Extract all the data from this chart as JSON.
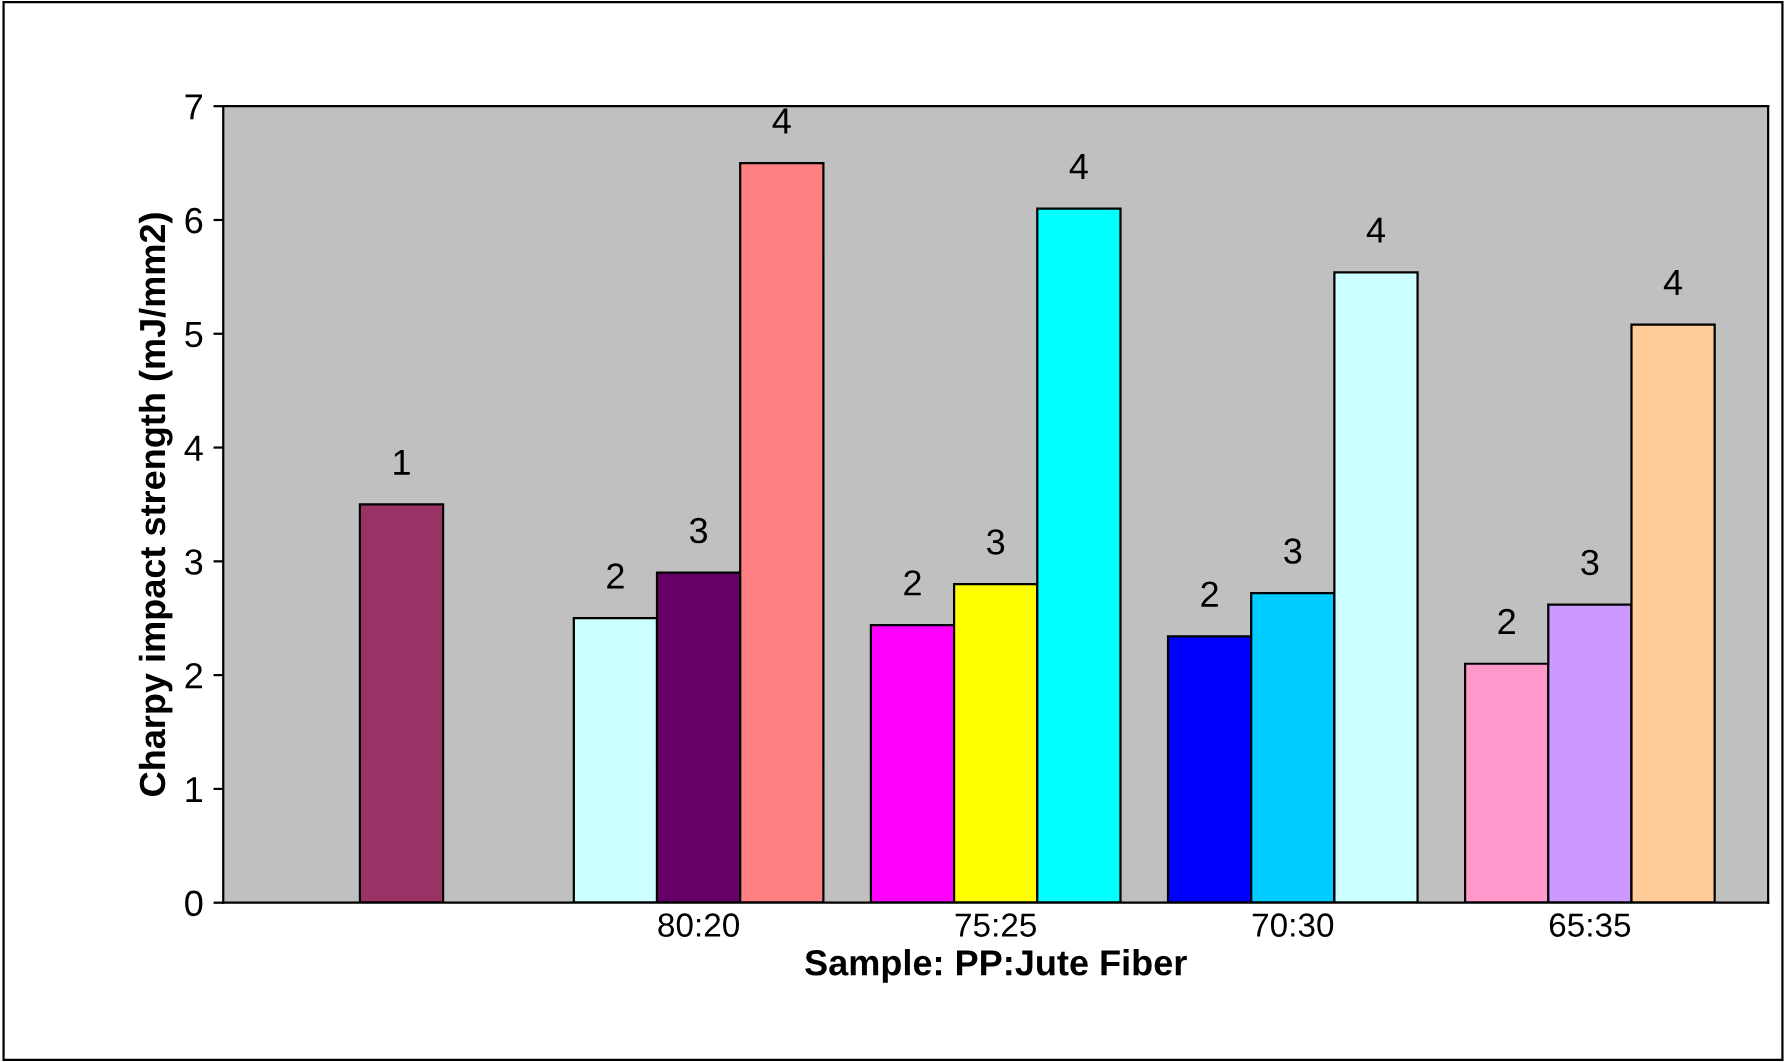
{
  "chart_data": {
    "type": "bar",
    "xlabel": "Sample: PP:Jute Fiber",
    "ylabel": "Charpy impact strength (mJ/mm2)",
    "categories": [
      null,
      "80:20",
      "75:25",
      "70:30",
      "65:35"
    ],
    "series": [
      {
        "name": "1",
        "values": [
          3.5,
          null,
          null,
          null,
          null
        ],
        "colors": [
          "#993366",
          null,
          null,
          null,
          null
        ]
      },
      {
        "name": "2",
        "values": [
          null,
          2.5,
          2.44,
          2.34,
          2.1
        ],
        "colors": [
          null,
          "#ccffff",
          "#ff00ff",
          "#0000ff",
          "#ff99cc"
        ]
      },
      {
        "name": "3",
        "values": [
          null,
          2.9,
          2.8,
          2.72,
          2.62
        ],
        "colors": [
          null,
          "#660066",
          "#ffff00",
          "#00ccff",
          "#cc99ff"
        ]
      },
      {
        "name": "4",
        "values": [
          null,
          6.5,
          6.1,
          5.54,
          5.08
        ],
        "colors": [
          null,
          "#ff8080",
          "#00ffff",
          "#ccffff",
          "#ffcc99"
        ]
      }
    ],
    "ylim": [
      0,
      7
    ],
    "yticks": [
      0,
      1,
      2,
      3,
      4,
      5,
      6,
      7
    ],
    "grid": false
  }
}
